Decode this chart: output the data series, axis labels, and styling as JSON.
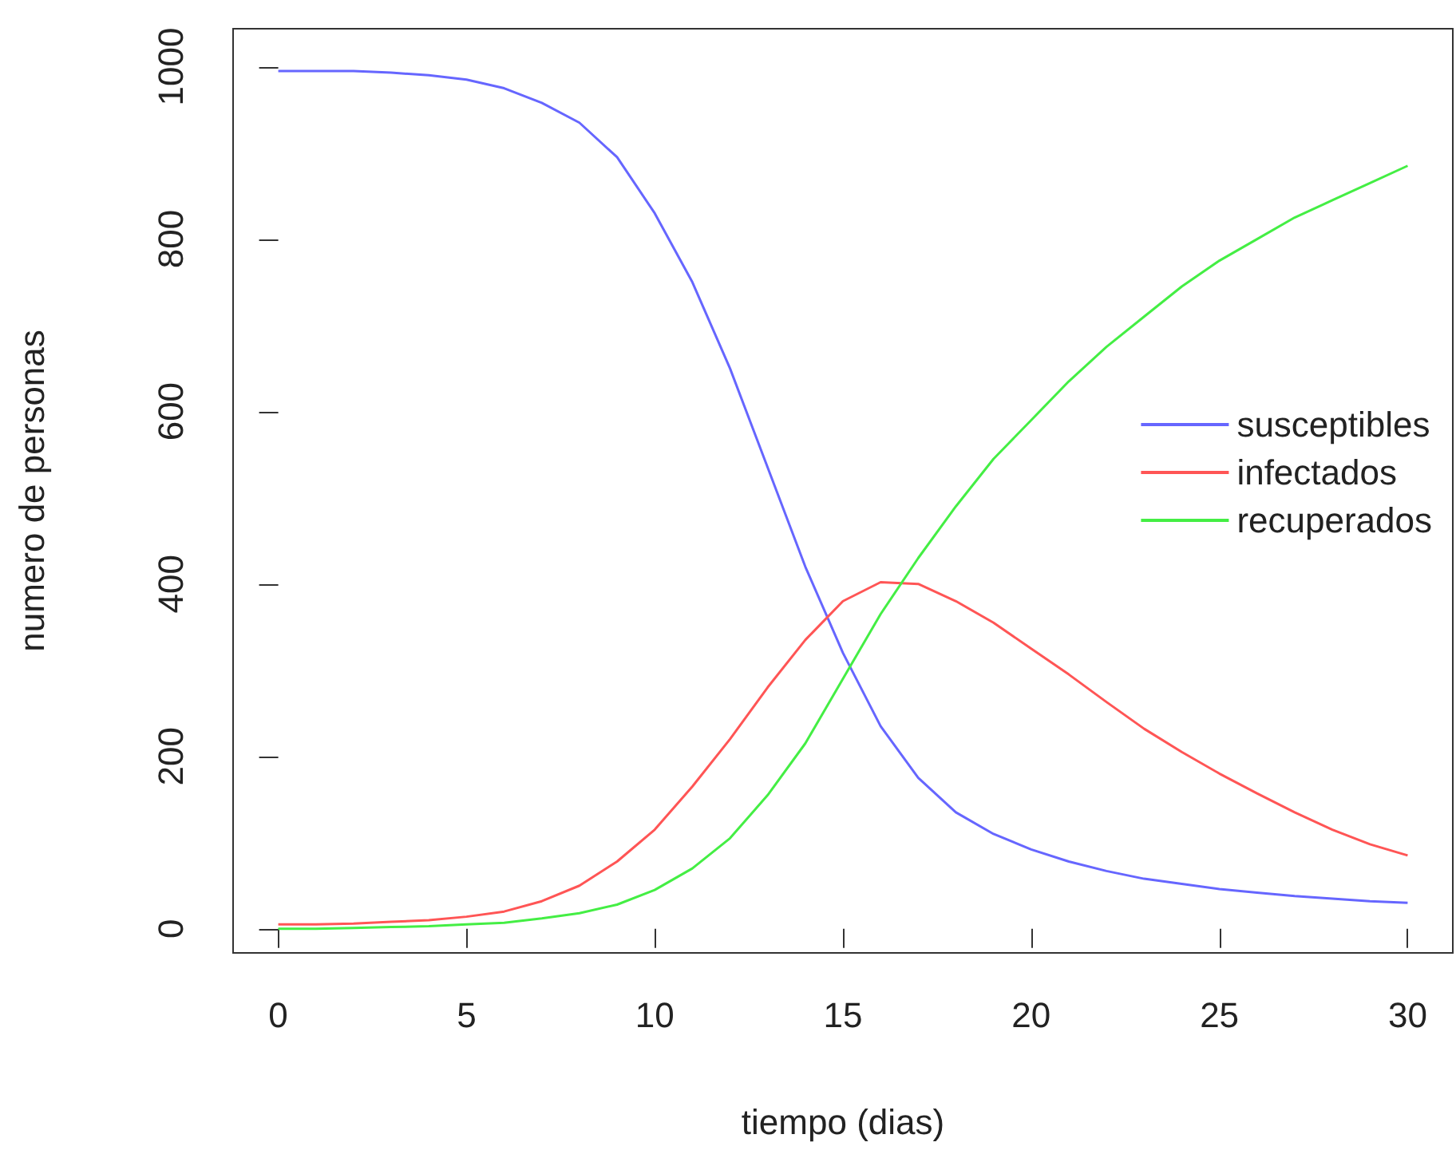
{
  "chart_data": {
    "type": "line",
    "xlabel": "tiempo (dias)",
    "ylabel": "numero de personas",
    "x": [
      0,
      1,
      2,
      3,
      4,
      5,
      6,
      7,
      8,
      9,
      10,
      11,
      12,
      13,
      14,
      15,
      16,
      17,
      18,
      19,
      20,
      21,
      22,
      23,
      24,
      25,
      26,
      27,
      28,
      29,
      30
    ],
    "series": [
      {
        "name": "susceptibles",
        "color": "#6666ff",
        "values": [
          995,
          995,
          995,
          993,
          990,
          985,
          975,
          958,
          935,
          895,
          830,
          750,
          650,
          535,
          420,
          320,
          235,
          175,
          135,
          110,
          92,
          78,
          67,
          58,
          52,
          46,
          42,
          38,
          35,
          32,
          30
        ]
      },
      {
        "name": "infectados",
        "color": "#ff5555",
        "values": [
          5,
          5,
          6,
          8,
          10,
          14,
          20,
          32,
          50,
          78,
          115,
          165,
          220,
          280,
          335,
          380,
          402,
          400,
          380,
          355,
          325,
          295,
          263,
          232,
          205,
          180,
          157,
          135,
          115,
          98,
          85
        ]
      },
      {
        "name": "recuperados",
        "color": "#44ee44",
        "values": [
          0,
          0,
          1,
          2,
          3,
          5,
          7,
          12,
          18,
          28,
          45,
          70,
          105,
          155,
          215,
          290,
          365,
          430,
          490,
          545,
          590,
          635,
          675,
          710,
          745,
          775,
          800,
          825,
          845,
          865,
          885
        ]
      }
    ],
    "xlim": [
      -1.2,
      31.2
    ],
    "xticks": [
      0,
      5,
      10,
      15,
      20,
      25,
      30
    ],
    "ylim": [
      -28,
      1044
    ],
    "yticks": [
      0,
      200,
      400,
      600,
      800,
      1000
    ],
    "grid": false,
    "legend": "right",
    "marker": "none",
    "line_style": "solid"
  }
}
